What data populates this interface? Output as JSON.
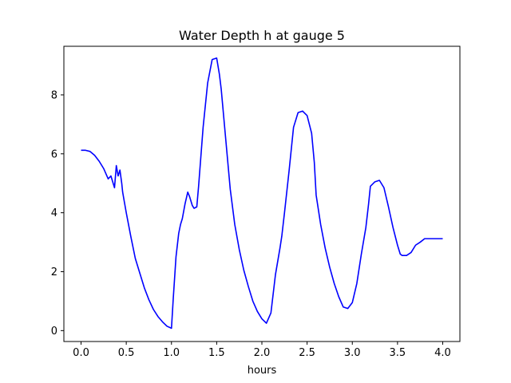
{
  "chart_data": {
    "type": "line",
    "title": "Water Depth h at gauge 5",
    "xlabel": "hours",
    "ylabel": "",
    "xlim": [
      -0.19,
      4.19
    ],
    "ylim": [
      -0.37,
      9.65
    ],
    "xticks": [
      {
        "value": 0.0,
        "label": "0.0"
      },
      {
        "value": 0.5,
        "label": "0.5"
      },
      {
        "value": 1.0,
        "label": "1.0"
      },
      {
        "value": 1.5,
        "label": "1.5"
      },
      {
        "value": 2.0,
        "label": "2.0"
      },
      {
        "value": 2.5,
        "label": "2.5"
      },
      {
        "value": 3.0,
        "label": "3.0"
      },
      {
        "value": 3.5,
        "label": "3.5"
      },
      {
        "value": 4.0,
        "label": "4.0"
      }
    ],
    "yticks": [
      {
        "value": 0,
        "label": "0"
      },
      {
        "value": 2,
        "label": "2"
      },
      {
        "value": 4,
        "label": "4"
      },
      {
        "value": 6,
        "label": "6"
      },
      {
        "value": 8,
        "label": "8"
      }
    ],
    "grid": false,
    "legend": "none",
    "series": [
      {
        "color": "#0000ff",
        "x": [
          0.0,
          0.05,
          0.1,
          0.15,
          0.2,
          0.25,
          0.3,
          0.33,
          0.37,
          0.39,
          0.41,
          0.43,
          0.45,
          0.46,
          0.48,
          0.5,
          0.55,
          0.6,
          0.65,
          0.7,
          0.75,
          0.8,
          0.85,
          0.9,
          0.95,
          1.0,
          1.02,
          1.05,
          1.08,
          1.1,
          1.12,
          1.15,
          1.18,
          1.2,
          1.23,
          1.25,
          1.28,
          1.3,
          1.35,
          1.4,
          1.45,
          1.5,
          1.53,
          1.55,
          1.6,
          1.65,
          1.7,
          1.75,
          1.8,
          1.85,
          1.9,
          1.95,
          2.0,
          2.05,
          2.1,
          2.15,
          2.2,
          2.22,
          2.25,
          2.3,
          2.35,
          2.4,
          2.45,
          2.5,
          2.55,
          2.58,
          2.6,
          2.65,
          2.7,
          2.75,
          2.8,
          2.85,
          2.9,
          2.95,
          3.0,
          3.05,
          3.1,
          3.15,
          3.18,
          3.2,
          3.25,
          3.3,
          3.35,
          3.4,
          3.45,
          3.5,
          3.53,
          3.55,
          3.6,
          3.65,
          3.7,
          3.75,
          3.8,
          3.83,
          3.85,
          3.9,
          3.95,
          4.0
        ],
        "y": [
          6.12,
          6.12,
          6.08,
          5.95,
          5.75,
          5.5,
          5.15,
          5.25,
          4.85,
          5.6,
          5.25,
          5.45,
          5.0,
          4.7,
          4.35,
          4.0,
          3.2,
          2.45,
          1.95,
          1.45,
          1.05,
          0.72,
          0.48,
          0.3,
          0.15,
          0.08,
          1.1,
          2.5,
          3.3,
          3.6,
          3.8,
          4.3,
          4.7,
          4.55,
          4.25,
          4.15,
          4.2,
          4.9,
          6.9,
          8.4,
          9.2,
          9.25,
          8.7,
          8.2,
          6.5,
          4.8,
          3.6,
          2.75,
          2.05,
          1.5,
          1.0,
          0.65,
          0.4,
          0.25,
          0.6,
          1.9,
          2.8,
          3.2,
          4.0,
          5.4,
          6.9,
          7.4,
          7.45,
          7.3,
          6.7,
          5.7,
          4.6,
          3.6,
          2.8,
          2.15,
          1.6,
          1.15,
          0.8,
          0.75,
          0.95,
          1.6,
          2.6,
          3.5,
          4.3,
          4.9,
          5.05,
          5.1,
          4.85,
          4.2,
          3.5,
          2.9,
          2.6,
          2.55,
          2.55,
          2.65,
          2.9,
          3.0,
          3.12,
          3.12,
          3.12,
          3.12,
          3.12,
          3.12
        ]
      }
    ]
  }
}
